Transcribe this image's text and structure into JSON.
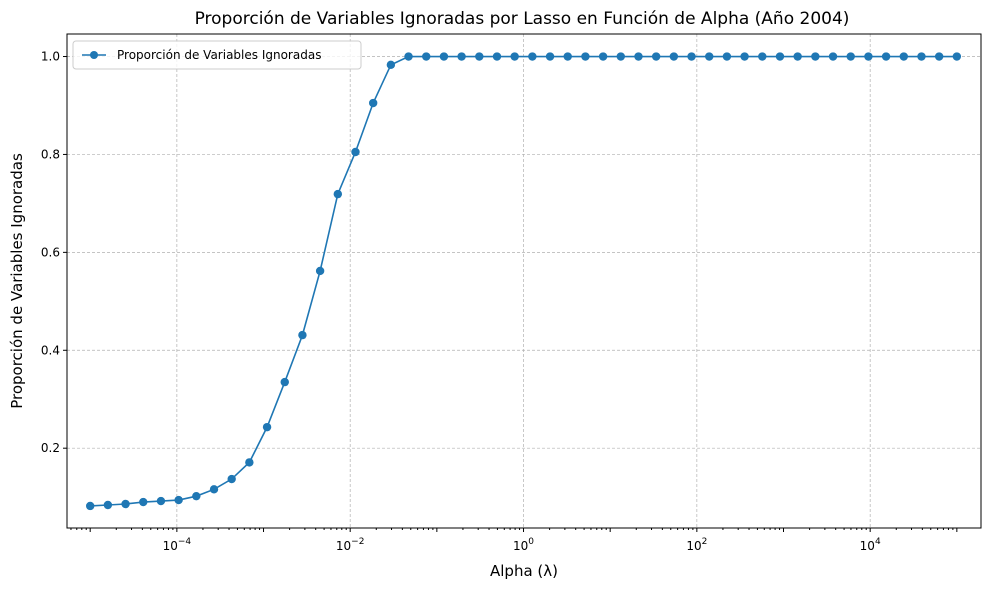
{
  "chart_data": {
    "type": "line",
    "title": "Proporción de Variables Ignoradas por Lasso en Función de Alpha (Año 2004)",
    "xlabel": "Alpha (λ)",
    "ylabel": "Proporción de Variables Ignoradas",
    "x_scale": "log",
    "xlim": [
      5.4e-06,
      190000
    ],
    "ylim": [
      0.037,
      1.046
    ],
    "grid": true,
    "legend_position": "upper-left",
    "x_ticks": [
      {
        "value": 0.0001,
        "base": "10",
        "exp": "−4"
      },
      {
        "value": 0.01,
        "base": "10",
        "exp": "−2"
      },
      {
        "value": 1,
        "base": "10",
        "exp": "0"
      },
      {
        "value": 100,
        "base": "10",
        "exp": "2"
      },
      {
        "value": 10000,
        "base": "10",
        "exp": "4"
      }
    ],
    "y_ticks": [
      "0.2",
      "0.4",
      "0.6",
      "0.8",
      "1.0"
    ],
    "series": [
      {
        "name": "Proporción de Variables Ignoradas",
        "color": "#1f77b4",
        "marker": "circle",
        "x_log10_range": [
          -5,
          5
        ],
        "num_points": 50,
        "values": [
          0.082,
          0.084,
          0.086,
          0.09,
          0.092,
          0.094,
          0.102,
          0.116,
          0.137,
          0.171,
          0.243,
          0.335,
          0.431,
          0.562,
          0.719,
          0.805,
          0.905,
          0.983,
          1.0,
          1.0,
          1.0,
          1.0,
          1.0,
          1.0,
          1.0,
          1.0,
          1.0,
          1.0,
          1.0,
          1.0,
          1.0,
          1.0,
          1.0,
          1.0,
          1.0,
          1.0,
          1.0,
          1.0,
          1.0,
          1.0,
          1.0,
          1.0,
          1.0,
          1.0,
          1.0,
          1.0,
          1.0,
          1.0,
          1.0,
          1.0
        ]
      }
    ]
  }
}
